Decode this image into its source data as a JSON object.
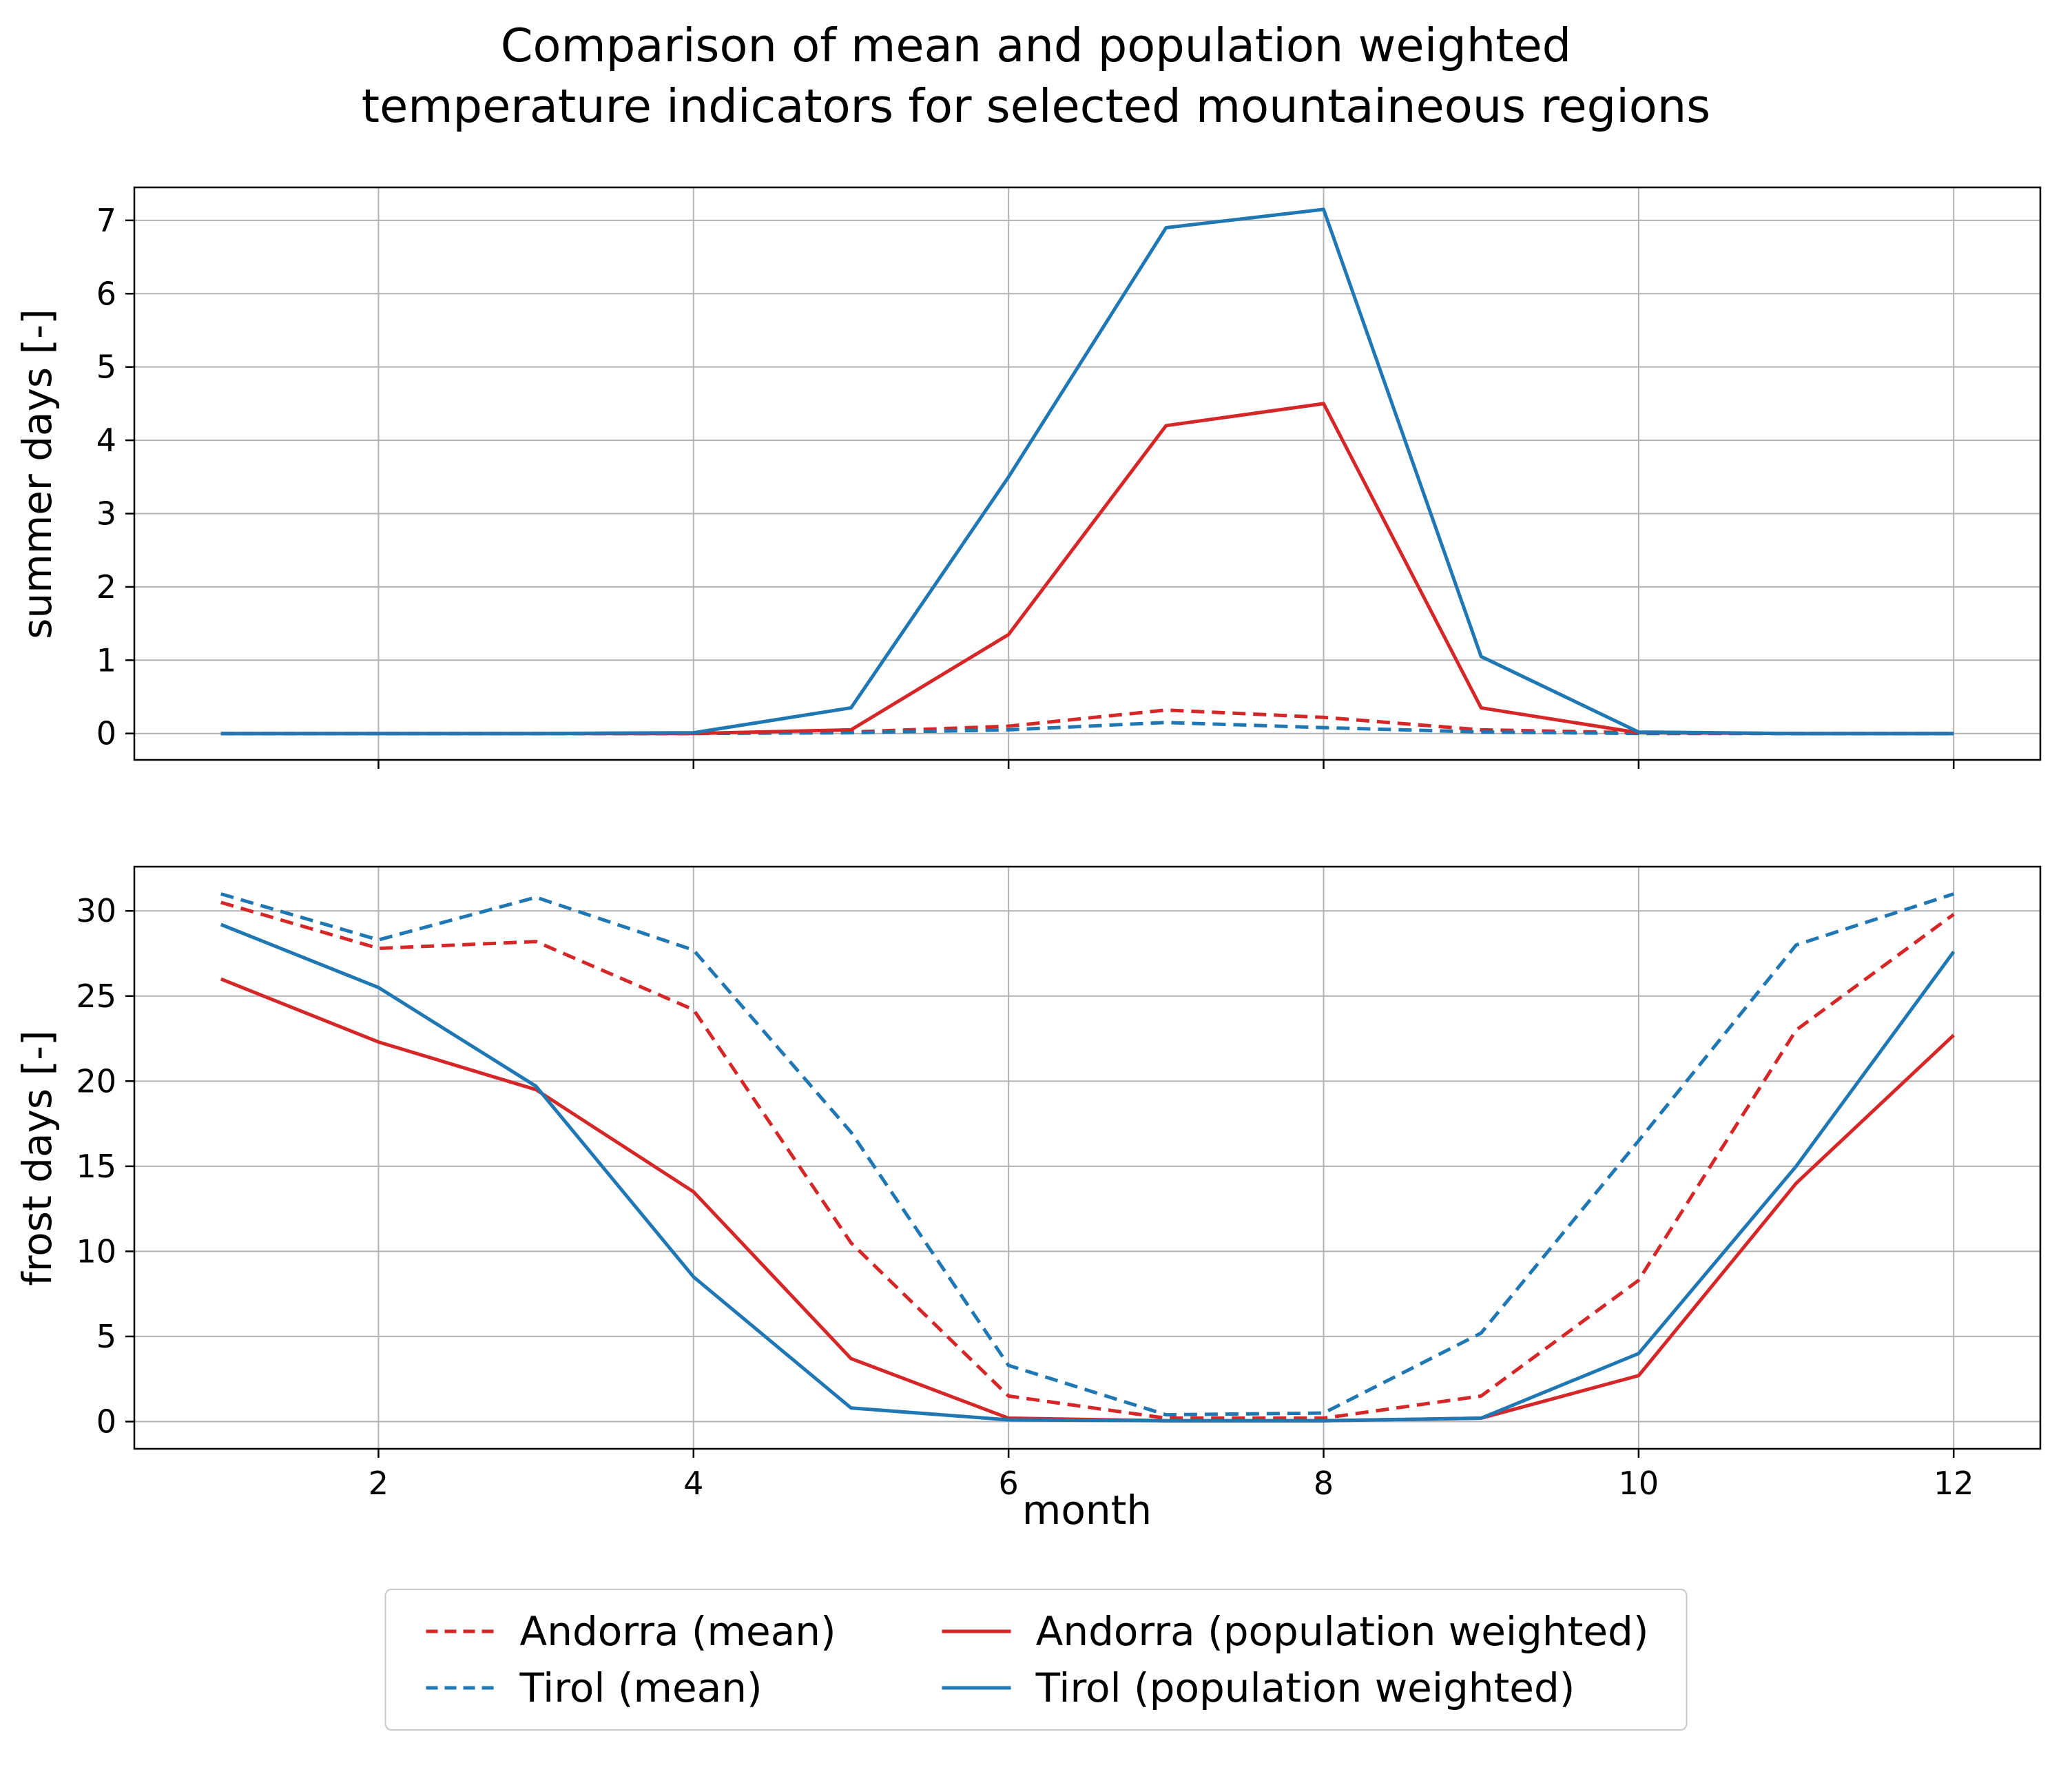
{
  "figure": {
    "title_lines": [
      "Comparison of mean and population weighted",
      "temperature indicators for selected mountaineous regions"
    ]
  },
  "colors": {
    "andorra": "#d62728",
    "tirol": "#1f77b4",
    "grid": "#b3b3b3",
    "spine": "#000000"
  },
  "legend": {
    "items": [
      {
        "label": "Andorra (mean)",
        "color": "#d62728",
        "dash": true
      },
      {
        "label": "Andorra (population weighted)",
        "color": "#d62728",
        "dash": false
      },
      {
        "label": "Tirol (mean)",
        "color": "#1f77b4",
        "dash": true
      },
      {
        "label": "Tirol (population weighted)",
        "color": "#1f77b4",
        "dash": false
      }
    ]
  },
  "chart_data": [
    {
      "type": "line",
      "ylabel": "summer days [-]",
      "xlabel": "",
      "x": [
        1,
        2,
        3,
        4,
        5,
        6,
        7,
        8,
        9,
        10,
        11,
        12
      ],
      "xlim": [
        0.45,
        12.55
      ],
      "ylim": [
        -0.36,
        7.45
      ],
      "xticks": [
        2,
        4,
        6,
        8,
        10,
        12
      ],
      "yticks": [
        0,
        1,
        2,
        3,
        4,
        5,
        6,
        7
      ],
      "show_x_tick_labels": false,
      "grid": true,
      "series": [
        {
          "name": "Andorra (mean)",
          "color": "#d62728",
          "dash": true,
          "values": [
            0,
            0,
            0,
            0,
            0.02,
            0.1,
            0.32,
            0.22,
            0.05,
            0.01,
            0,
            0
          ]
        },
        {
          "name": "Tirol (mean)",
          "color": "#1f77b4",
          "dash": true,
          "values": [
            0,
            0,
            0,
            0,
            0.01,
            0.05,
            0.15,
            0.08,
            0.02,
            0,
            0,
            0
          ]
        },
        {
          "name": "Andorra (population weighted)",
          "color": "#d62728",
          "dash": false,
          "values": [
            0,
            0,
            0,
            0,
            0.05,
            1.35,
            4.2,
            4.5,
            0.35,
            0.01,
            0,
            0
          ]
        },
        {
          "name": "Tirol (population weighted)",
          "color": "#1f77b4",
          "dash": false,
          "values": [
            0,
            0,
            0,
            0.01,
            0.35,
            3.5,
            6.9,
            7.15,
            1.05,
            0.02,
            0,
            0
          ]
        }
      ]
    },
    {
      "type": "line",
      "ylabel": "frost days [-]",
      "xlabel": "month",
      "x": [
        1,
        2,
        3,
        4,
        5,
        6,
        7,
        8,
        9,
        10,
        11,
        12
      ],
      "xlim": [
        0.45,
        12.55
      ],
      "ylim": [
        -1.6,
        32.6
      ],
      "xticks": [
        2,
        4,
        6,
        8,
        10,
        12
      ],
      "yticks": [
        0,
        5,
        10,
        15,
        20,
        25,
        30
      ],
      "show_x_tick_labels": true,
      "grid": true,
      "series": [
        {
          "name": "Andorra (mean)",
          "color": "#d62728",
          "dash": true,
          "values": [
            30.5,
            27.8,
            28.2,
            24.2,
            10.5,
            1.5,
            0.2,
            0.2,
            1.5,
            8.3,
            23,
            29.8
          ]
        },
        {
          "name": "Tirol (mean)",
          "color": "#1f77b4",
          "dash": true,
          "values": [
            31,
            28.3,
            30.8,
            27.7,
            17,
            3.3,
            0.4,
            0.5,
            5.2,
            16.5,
            28,
            31
          ]
        },
        {
          "name": "Andorra (population weighted)",
          "color": "#d62728",
          "dash": false,
          "values": [
            26,
            22.3,
            19.5,
            13.5,
            3.7,
            0.2,
            0.05,
            0.05,
            0.2,
            2.7,
            14,
            22.7
          ]
        },
        {
          "name": "Tirol (population weighted)",
          "color": "#1f77b4",
          "dash": false,
          "values": [
            29.2,
            25.5,
            19.7,
            8.5,
            0.8,
            0.1,
            0.05,
            0.05,
            0.2,
            4,
            15,
            27.6
          ]
        }
      ]
    }
  ]
}
